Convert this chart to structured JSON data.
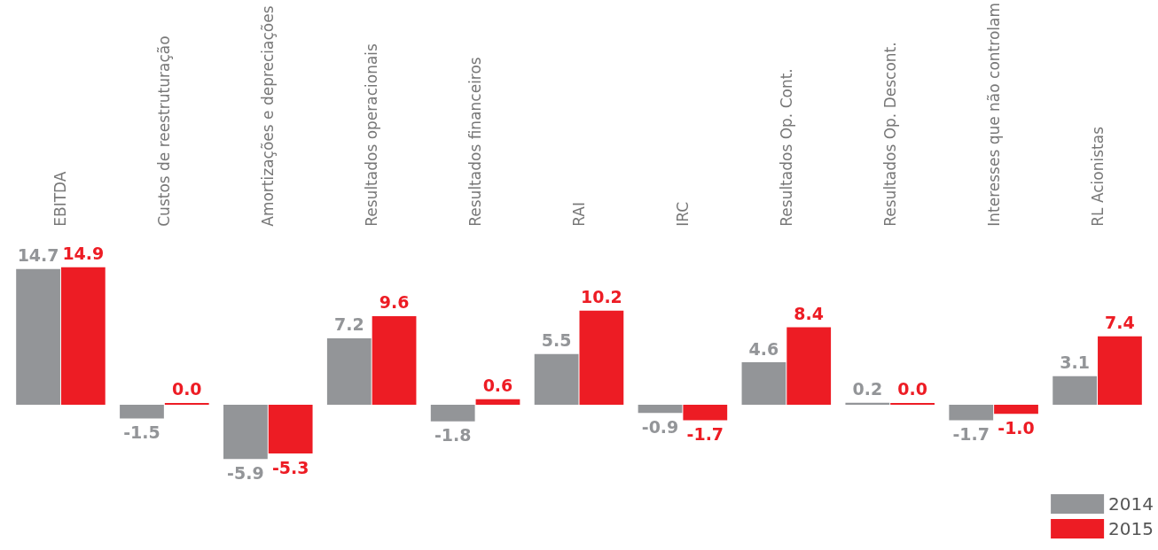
{
  "chart_data": {
    "type": "bar",
    "categories": [
      "EBITDA",
      "Custos de reestruturação",
      "Amortizações e depreciações",
      "Resultados operacionais",
      "Resultados financeiros",
      "RAI",
      "IRC",
      "Resultados Op. Cont.",
      "Resultados Op. Descont.",
      "Interesses que não controlam",
      "RL Acionistas"
    ],
    "series": [
      {
        "name": "2014",
        "color": "#939598",
        "values": [
          14.7,
          -1.5,
          -5.9,
          7.2,
          -1.8,
          5.5,
          -0.9,
          4.6,
          0.2,
          -1.7,
          3.1
        ],
        "value_labels": [
          "14.7",
          "-1.5",
          "-5.9",
          "7.2",
          "-1.8",
          "5.5",
          "-0.9",
          "4.6",
          "0.2",
          "-1.7",
          "3.1"
        ]
      },
      {
        "name": "2015",
        "color": "#ed1c24",
        "values": [
          14.9,
          0.0,
          -5.3,
          9.6,
          0.6,
          10.2,
          -1.7,
          8.4,
          0.0,
          -1.0,
          7.4
        ],
        "value_labels": [
          "14.9",
          "0.0",
          "-5.3",
          "9.6",
          "0.6",
          "10.2",
          "-1.7",
          "8.4",
          "0.0",
          "-1.0",
          "7.4"
        ]
      }
    ],
    "legend": "bottom right",
    "tick_labels": "x"
  }
}
